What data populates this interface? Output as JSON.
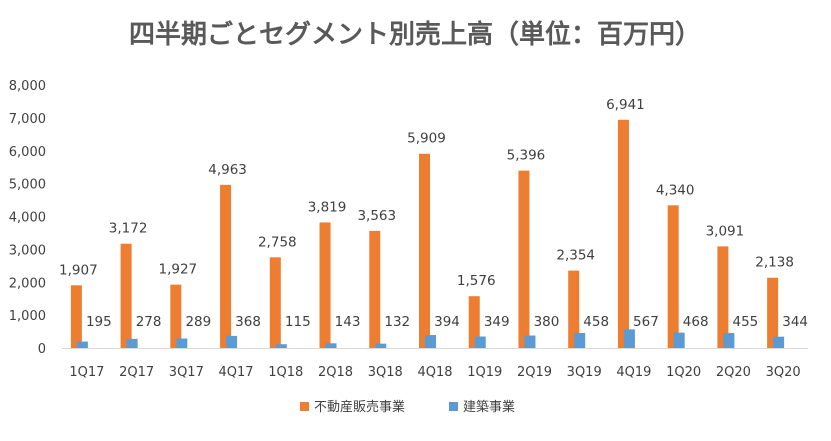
{
  "chart_data": {
    "type": "bar",
    "title": "四半期ごとセグメント別売上高（単位：百万円）",
    "categories": [
      "1Q17",
      "2Q17",
      "3Q17",
      "4Q17",
      "1Q18",
      "2Q18",
      "3Q18",
      "4Q18",
      "1Q19",
      "2Q19",
      "3Q19",
      "4Q19",
      "1Q20",
      "2Q20",
      "3Q20"
    ],
    "series": [
      {
        "name": "不動産販売事業",
        "color": "#ED7D31",
        "values": [
          1907,
          3172,
          1927,
          4963,
          2758,
          3819,
          3563,
          5909,
          1576,
          5396,
          2354,
          6941,
          4340,
          3091,
          2138
        ]
      },
      {
        "name": "建築事業",
        "color": "#5B9BD5",
        "values": [
          195,
          278,
          289,
          368,
          115,
          143,
          132,
          394,
          349,
          380,
          458,
          567,
          468,
          455,
          344
        ]
      }
    ],
    "ylim": [
      0,
      8000
    ],
    "yticks": [
      0,
      1000,
      2000,
      3000,
      4000,
      5000,
      6000,
      7000,
      8000
    ],
    "xlabel": "",
    "ylabel": "",
    "grid": false,
    "legend_position": "bottom"
  }
}
